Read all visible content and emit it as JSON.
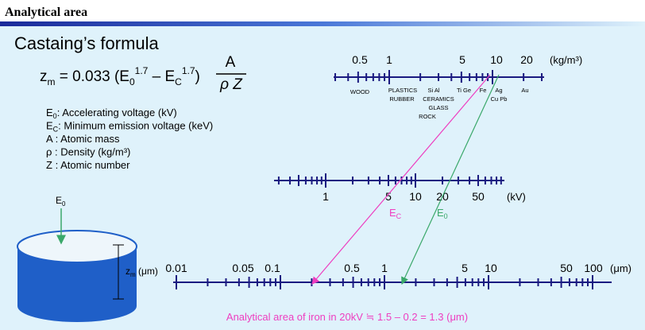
{
  "header": {
    "title": "Analytical area"
  },
  "formula_title": "Castaing’s formula",
  "formula": {
    "z": "z",
    "z_sub": "m",
    "part1": " = 0.033 (E",
    "e0_sub": "0",
    "exp1": "1.7",
    "part2": " – E",
    "ec_sub": "C",
    "exp2": "1.7",
    "part3": ")",
    "numerator": "A",
    "denominator": "ρ Z"
  },
  "definitions": [
    {
      "symbol": "E",
      "sub": "0",
      "text": ": Accelerating voltage (kV)"
    },
    {
      "symbol": "E",
      "sub": "C",
      "text": ": Minimum emission voltage (keV)"
    },
    {
      "symbol": "A",
      "text": "  : Atomic mass"
    },
    {
      "symbol": "ρ",
      "text": "  : Density (kg/m³)"
    },
    {
      "symbol": "Z",
      "text": "  : Atomic number"
    }
  ],
  "density_scale": {
    "labels": [
      "0.5",
      "1",
      "5",
      "10",
      "20"
    ],
    "unit": "(kg/m³)",
    "materials": [
      "WOOD",
      "PLASTICS",
      "RUBBER",
      "Si Al",
      "CERAMICS",
      "GLASS",
      "ROCK",
      "Ti Ge",
      "Fe",
      "Ag",
      "Cu Pb",
      "Au"
    ]
  },
  "voltage_scale": {
    "labels": [
      "1",
      "5",
      "10",
      "20",
      "50"
    ],
    "unit": "(kV)",
    "ec": "E",
    "ec_sub": "C",
    "e0": "E",
    "e0_sub": "0"
  },
  "depth_scale": {
    "labels": [
      "0.01",
      "0.05",
      "0.1",
      "0.5",
      "1",
      "5",
      "10",
      "50",
      "100"
    ],
    "unit": "(μm)"
  },
  "sample": {
    "beam": "E",
    "beam_sub": "0",
    "depth": "z",
    "depth_sub": "m",
    "depth_unit": " (μm)"
  },
  "footer": "Analytical area of iron in 20kV  ≒  1.5 – 0.2 = 1.3 (μm)"
}
